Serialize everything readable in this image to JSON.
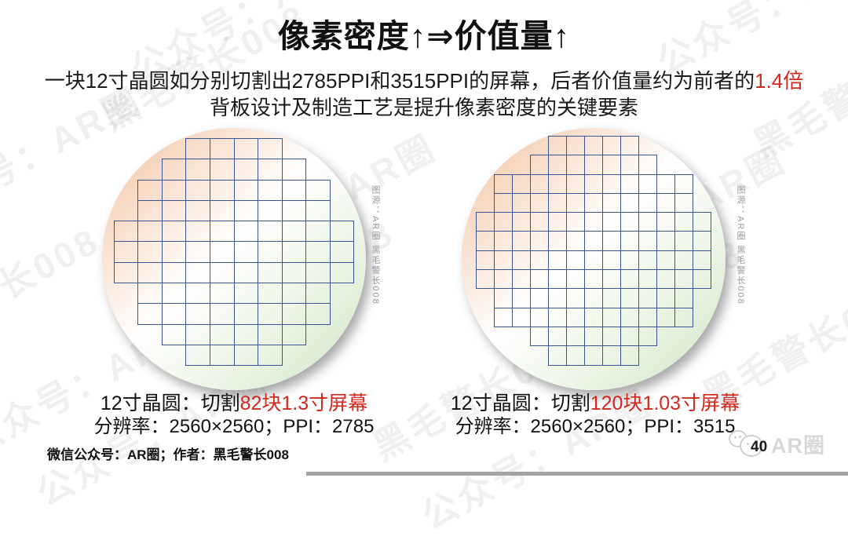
{
  "title": "像素密度↑⇒价值量↑",
  "subtitle": {
    "line1_prefix": "一块12寸晶圆如分别切割出2785PPI和3515PPI的屏幕，后者价值量约为前者的",
    "line1_highlight": "1.4倍",
    "line2": "背板设计及制造工艺是提升像素密度的关键要素"
  },
  "wafers": [
    {
      "name": "12寸晶圆 1.3寸切割示意",
      "caption_prefix": "12寸晶圆：切割",
      "caption_highlight": "82块1.3寸屏幕",
      "spec_line": "分辨率：2560×2560；PPI：2785",
      "source_note": "图源：AR圈 黑毛警长008",
      "total_dies": 82,
      "rows": [
        4,
        6,
        8,
        8,
        10,
        10,
        10,
        8,
        8,
        6,
        4
      ]
    },
    {
      "name": "12寸晶圆 1.03寸切割示意",
      "caption_prefix": "12寸晶圆：切割",
      "caption_highlight": "120块1.03寸屏幕",
      "spec_line": "分辨率：2560×2560；PPI：3515",
      "source_note": "图源：AR圈 黑毛警长008",
      "total_dies": 120,
      "rows": [
        5,
        7,
        11,
        11,
        13,
        13,
        13,
        13,
        11,
        11,
        7,
        5
      ]
    }
  ],
  "footer": {
    "credit": "微信公众号：AR圈；作者：黑毛警长008",
    "logo_text": "AR圈",
    "page_number": "40"
  },
  "watermark": {
    "texts": [
      "公众号：AR圈",
      "黑毛警长008"
    ]
  },
  "colors": {
    "highlight_red": "#d2281e",
    "grid_blue": "#3a5494",
    "wafer_peach": "#f2bd9a",
    "wafer_green": "#cfe6c3",
    "note_gray": "#9a9a9a"
  }
}
